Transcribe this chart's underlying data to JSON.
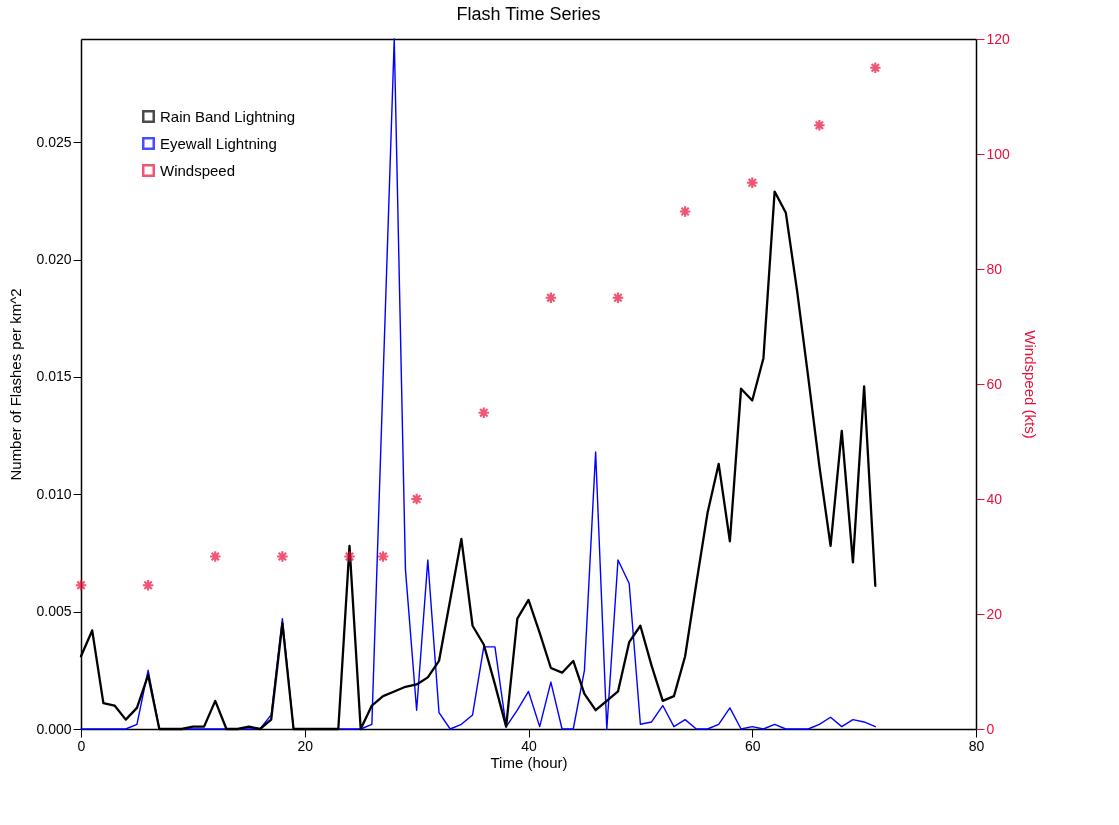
{
  "chart_data": {
    "type": "line",
    "title": "Flash Time Series",
    "xlabel": "Time (hour)",
    "ylabel": "Number of Flashes per km^2",
    "y2label": "Windspeed (kts)",
    "x": [
      0,
      1,
      2,
      3,
      4,
      5,
      6,
      7,
      8,
      9,
      10,
      11,
      12,
      13,
      14,
      15,
      16,
      17,
      18,
      19,
      20,
      21,
      22,
      23,
      24,
      25,
      26,
      27,
      28,
      29,
      30,
      31,
      32,
      33,
      34,
      35,
      36,
      37,
      38,
      39,
      40,
      41,
      42,
      43,
      44,
      45,
      46,
      47,
      48,
      49,
      50,
      51,
      52,
      53,
      54,
      55,
      56,
      57,
      58,
      59,
      60,
      61,
      62,
      63,
      64,
      65,
      66,
      67,
      68,
      69,
      70,
      71
    ],
    "series": [
      {
        "name": "Rain Band Lightning",
        "color": "#000000",
        "type": "line",
        "axis": "y",
        "values": [
          0.0031,
          0.0042,
          0.0011,
          0.001,
          0.0004,
          0.0009,
          0.0023,
          0,
          0,
          0,
          0.0001,
          0.0001,
          0.0012,
          0,
          0,
          0.0001,
          0,
          0.0004,
          0.0045,
          0,
          0,
          0,
          0,
          0,
          0.0078,
          0,
          0.001,
          0.0014,
          0.0016,
          0.0018,
          0.0019,
          0.0022,
          0.0029,
          0.0055,
          0.0081,
          0.0044,
          0.0036,
          0.0019,
          0.0001,
          0.0047,
          0.0055,
          0.0041,
          0.0026,
          0.0024,
          0.0029,
          0.0015,
          0.0008,
          0.0012,
          0.0016,
          0.0037,
          0.0044,
          0.0027,
          0.0012,
          0.0014,
          0.0031,
          0.0062,
          0.0092,
          0.0113,
          0.008,
          0.0145,
          0.014,
          0.0158,
          0.0229,
          0.022,
          0.0187,
          0.015,
          0.0112,
          0.0078,
          0.0127,
          0.0071,
          0.0146,
          0.0061
        ]
      },
      {
        "name": "Eyewall Lightning",
        "color": "#0000ff",
        "type": "line",
        "axis": "y",
        "values": [
          0,
          0,
          0,
          0,
          0,
          0.0002,
          0.0025,
          0,
          0,
          0,
          0,
          0,
          0,
          0,
          0,
          0,
          0,
          0.0006,
          0.0047,
          0,
          0,
          0,
          0,
          0,
          0,
          0,
          0.0002,
          0.0149,
          0.0294,
          0.0068,
          0.0008,
          0.0072,
          0.0007,
          0,
          0.0002,
          0.0006,
          0.0035,
          0.0035,
          0.0001,
          0.0008,
          0.0016,
          0.0001,
          0.002,
          0,
          0,
          0.0025,
          0.0118,
          0,
          0.0072,
          0.0062,
          0.0002,
          0.0003,
          0.001,
          0.0001,
          0.0004,
          0,
          0,
          0.0002,
          0.0009,
          0,
          0.0001,
          0,
          0.0002,
          0,
          0,
          0,
          0.0002,
          0.0005,
          0.0001,
          0.0004,
          0.0003,
          0.0001
        ]
      },
      {
        "name": "Windspeed",
        "color": "#e8103a",
        "type": "scatter",
        "axis": "y2",
        "marker": "cross",
        "x": [
          0,
          6,
          12,
          18,
          24,
          27,
          30,
          36,
          42,
          48,
          54,
          60,
          66,
          71
        ],
        "values": [
          25,
          25,
          30,
          30,
          30,
          30,
          40,
          55,
          75,
          75,
          90,
          95,
          105,
          115
        ]
      }
    ],
    "xlim": [
      0,
      80
    ],
    "xticks": [
      0,
      20,
      40,
      60,
      80
    ],
    "ylim": [
      0,
      0.0294
    ],
    "yticks": [
      {
        "value": 0,
        "label": "0.000"
      },
      {
        "value": 0.005,
        "label": "0.005"
      },
      {
        "value": 0.01,
        "label": "0.010"
      },
      {
        "value": 0.015,
        "label": "0.015"
      },
      {
        "value": 0.02,
        "label": "0.020"
      },
      {
        "value": 0.025,
        "label": "0.025"
      }
    ],
    "y2lim": [
      0,
      120
    ],
    "y2ticks": [
      0,
      20,
      40,
      60,
      80,
      100,
      120
    ],
    "legend": "top left",
    "grid": false
  }
}
